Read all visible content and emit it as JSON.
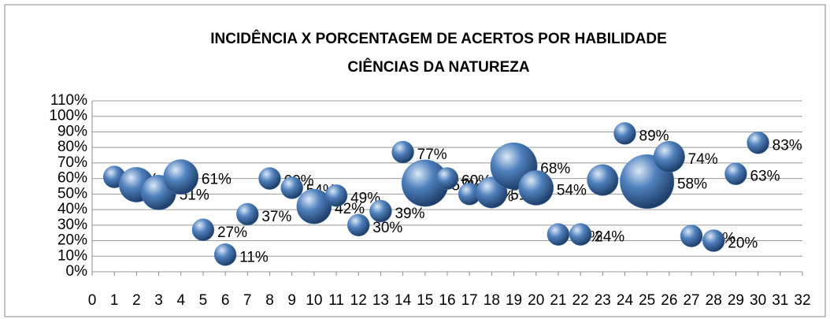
{
  "chart_data": {
    "type": "bubble",
    "title": "INCIDÊNCIA X PORCENTAGEM DE ACERTOS POR HABILIDADE",
    "subtitle": "CIÊNCIAS  DA NATUREZA",
    "x": [
      1,
      2,
      3,
      4,
      5,
      6,
      7,
      8,
      9,
      10,
      11,
      12,
      13,
      14,
      15,
      16,
      17,
      18,
      19,
      20,
      21,
      22,
      23,
      24,
      25,
      26,
      27,
      28,
      29,
      30
    ],
    "values": [
      61,
      56,
      51,
      61,
      27,
      11,
      37,
      60,
      54,
      42,
      49,
      30,
      39,
      77,
      57,
      60,
      50,
      51,
      68,
      54,
      24,
      24,
      59,
      89,
      58,
      74,
      23,
      20,
      63,
      83
    ],
    "value_labels": [
      "61%",
      "56%",
      "51%",
      "61%",
      "27%",
      "11%",
      "37%",
      "60%",
      "54%",
      "42%",
      "49%",
      "30%",
      "39%",
      "77%",
      "57%",
      "60%",
      "50%",
      "51%",
      "68%",
      "54%",
      "24%",
      "24%",
      "59%",
      "89%",
      "58%",
      "74%",
      "23%",
      "20%",
      "63%",
      "83%"
    ],
    "sizes": [
      1,
      2.5,
      2.5,
      2.5,
      1,
      1,
      1,
      1,
      1,
      2.5,
      1,
      1,
      1,
      1,
      4.5,
      1,
      1,
      2,
      4.5,
      2.5,
      1,
      1,
      2,
      1,
      6,
      2,
      1,
      1,
      1,
      1
    ],
    "color": "#4f81bd",
    "xlim": [
      0,
      32
    ],
    "xticks": [
      0,
      1,
      2,
      3,
      4,
      5,
      6,
      7,
      8,
      9,
      10,
      11,
      12,
      13,
      14,
      15,
      16,
      17,
      18,
      19,
      20,
      21,
      22,
      23,
      24,
      25,
      26,
      27,
      28,
      29,
      30,
      31,
      32
    ],
    "ylim": [
      0,
      110
    ],
    "yticks": [
      {
        "value": 0,
        "label": "0%"
      },
      {
        "value": 10,
        "label": "10%"
      },
      {
        "value": 20,
        "label": "20%"
      },
      {
        "value": 30,
        "label": "30%"
      },
      {
        "value": 40,
        "label": "40%"
      },
      {
        "value": 50,
        "label": "50%"
      },
      {
        "value": 60,
        "label": "60%"
      },
      {
        "value": 70,
        "label": "70%"
      },
      {
        "value": 80,
        "label": "80%"
      },
      {
        "value": 90,
        "label": "90%"
      },
      {
        "value": 100,
        "label": "100%"
      },
      {
        "value": 110,
        "label": "110%"
      }
    ],
    "grid": true
  }
}
